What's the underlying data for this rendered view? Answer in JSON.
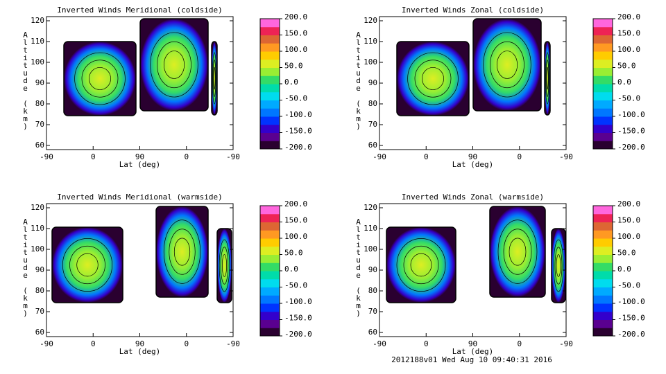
{
  "chart_data": [
    {
      "type": "contour",
      "title": "Inverted Winds Meridional (coldside)",
      "x_label": "Lat (deg)",
      "y_label": "Altitude (km)",
      "categories": [
        "-90",
        "0",
        "90",
        "0",
        "-90"
      ],
      "ylim": [
        58,
        122
      ],
      "yticks": [
        60,
        70,
        80,
        90,
        100,
        110,
        120
      ],
      "colorbar": {
        "lim": [
          -200,
          200
        ],
        "ticks": [
          {
            "value": -200,
            "label": "-200.0"
          },
          {
            "value": -150,
            "label": "-150.0"
          },
          {
            "value": -100,
            "label": "-100.0"
          },
          {
            "value": -50,
            "label": "-50.0"
          },
          {
            "value": 0,
            "label": "0.0"
          },
          {
            "value": 50,
            "label": "50.0"
          },
          {
            "value": 100,
            "label": "100.0"
          },
          {
            "value": 150,
            "label": "150.0"
          },
          {
            "value": 200,
            "label": "200.0"
          }
        ],
        "colors": [
          "#2a0030",
          "#5a0090",
          "#3300cc",
          "#0033ff",
          "#0077ff",
          "#00aaff",
          "#00dcee",
          "#00dcaa",
          "#33dc66",
          "#99ee33",
          "#ddee22",
          "#ffcc00",
          "#ff9922",
          "#dd6633",
          "#ee2255",
          "#ff66dd"
        ]
      }
    },
    {
      "type": "contour",
      "title": "Inverted Winds Zonal (coldside)",
      "x_label": "Lat (deg)",
      "y_label": "Altitude (km)",
      "categories": [
        "-90",
        "0",
        "90",
        "0",
        "-90"
      ],
      "ylim": [
        58,
        122
      ],
      "yticks": [
        60,
        70,
        80,
        90,
        100,
        110,
        120
      ],
      "colorbar": {
        "lim": [
          -200,
          200
        ],
        "ticks": [
          {
            "value": -200,
            "label": "-200.0"
          },
          {
            "value": -150,
            "label": "-150.0"
          },
          {
            "value": -100,
            "label": "-100.0"
          },
          {
            "value": -50,
            "label": "-50.0"
          },
          {
            "value": 0,
            "label": "0.0"
          },
          {
            "value": 50,
            "label": "50.0"
          },
          {
            "value": 100,
            "label": "100.0"
          },
          {
            "value": 150,
            "label": "150.0"
          },
          {
            "value": 200,
            "label": "200.0"
          }
        ],
        "colors": [
          "#2a0030",
          "#5a0090",
          "#3300cc",
          "#0033ff",
          "#0077ff",
          "#00aaff",
          "#00dcee",
          "#00dcaa",
          "#33dc66",
          "#99ee33",
          "#ddee22",
          "#ffcc00",
          "#ff9922",
          "#dd6633",
          "#ee2255",
          "#ff66dd"
        ]
      }
    },
    {
      "type": "contour",
      "title": "Inverted Winds Meridional (warmside)",
      "x_label": "Lat (deg)",
      "y_label": "Altitude (km)",
      "categories": [
        "-90",
        "0",
        "90",
        "0",
        "-90"
      ],
      "ylim": [
        58,
        122
      ],
      "yticks": [
        60,
        70,
        80,
        90,
        100,
        110,
        120
      ],
      "colorbar": {
        "lim": [
          -200,
          200
        ],
        "ticks": [
          {
            "value": -200,
            "label": "-200.0"
          },
          {
            "value": -150,
            "label": "-150.0"
          },
          {
            "value": -100,
            "label": "-100.0"
          },
          {
            "value": -50,
            "label": "-50.0"
          },
          {
            "value": 0,
            "label": "0.0"
          },
          {
            "value": 50,
            "label": "50.0"
          },
          {
            "value": 100,
            "label": "100.0"
          },
          {
            "value": 150,
            "label": "150.0"
          },
          {
            "value": 200,
            "label": "200.0"
          }
        ],
        "colors": [
          "#2a0030",
          "#5a0090",
          "#3300cc",
          "#0033ff",
          "#0077ff",
          "#00aaff",
          "#00dcee",
          "#00dcaa",
          "#33dc66",
          "#99ee33",
          "#ddee22",
          "#ffcc00",
          "#ff9922",
          "#dd6633",
          "#ee2255",
          "#ff66dd"
        ]
      }
    },
    {
      "type": "contour",
      "title": "Inverted Winds Zonal (warmside)",
      "x_label": "Lat (deg)",
      "y_label": "Altitude (km)",
      "categories": [
        "-90",
        "0",
        "90",
        "0",
        "-90"
      ],
      "ylim": [
        58,
        122
      ],
      "yticks": [
        60,
        70,
        80,
        90,
        100,
        110,
        120
      ],
      "colorbar": {
        "lim": [
          -200,
          200
        ],
        "ticks": [
          {
            "value": -200,
            "label": "-200.0"
          },
          {
            "value": -150,
            "label": "-150.0"
          },
          {
            "value": -100,
            "label": "-100.0"
          },
          {
            "value": -50,
            "label": "-50.0"
          },
          {
            "value": 0,
            "label": "0.0"
          },
          {
            "value": 50,
            "label": "50.0"
          },
          {
            "value": 100,
            "label": "100.0"
          },
          {
            "value": 150,
            "label": "150.0"
          },
          {
            "value": 200,
            "label": "200.0"
          }
        ],
        "colors": [
          "#2a0030",
          "#5a0090",
          "#3300cc",
          "#0033ff",
          "#0077ff",
          "#00aaff",
          "#00dcee",
          "#00dcaa",
          "#33dc66",
          "#99ee33",
          "#ddee22",
          "#ffcc00",
          "#ff9922",
          "#dd6633",
          "#ee2255",
          "#ff66dd"
        ]
      }
    }
  ],
  "footer": "2012188v01 Wed Aug 10 09:40:31 2016"
}
